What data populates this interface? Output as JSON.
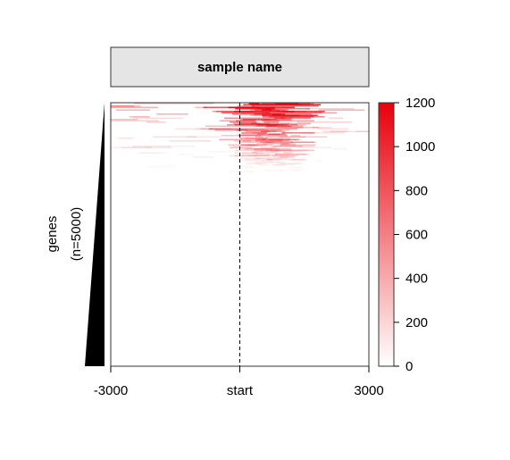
{
  "chart_data": {
    "type": "heatmap",
    "title": "sample name",
    "ylabel_line1": "genes",
    "ylabel_line2": "(n=5000)",
    "n_genes": 5000,
    "x_ticks": [
      {
        "value": -3000,
        "label": "-3000"
      },
      {
        "value": 0,
        "label": "start"
      },
      {
        "value": 3000,
        "label": "3000"
      }
    ],
    "xlim": [
      -3000,
      3000
    ],
    "reference_line": {
      "x": 0,
      "style": "dashed"
    },
    "color_scale": {
      "min": 0,
      "max": 1200,
      "low_color": "#ffffff",
      "high_color": "#e8000b",
      "ticks": [
        0,
        200,
        400,
        600,
        800,
        1000,
        1200
      ]
    },
    "sort_order": "genes sorted by decreasing signal (top = highest)",
    "signal_profile": {
      "high_signal_fraction_of_rows": 0.3,
      "peak_region_x": [
        0,
        1500
      ]
    }
  }
}
